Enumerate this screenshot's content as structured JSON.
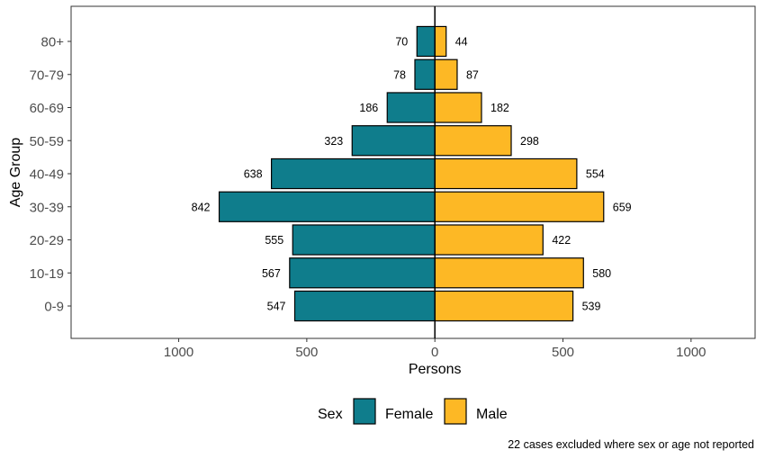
{
  "chart_data": {
    "type": "bar",
    "orientation": "horizontal-diverging",
    "categories": [
      "0-9",
      "10-19",
      "20-29",
      "30-39",
      "40-49",
      "50-59",
      "60-69",
      "70-79",
      "80+"
    ],
    "series": [
      {
        "name": "Female",
        "values": [
          547,
          567,
          555,
          842,
          638,
          323,
          186,
          78,
          70
        ],
        "color": "#0f7d8c",
        "side": "left"
      },
      {
        "name": "Male",
        "values": [
          539,
          580,
          422,
          659,
          554,
          298,
          182,
          87,
          44
        ],
        "color": "#fdb825",
        "side": "right"
      }
    ],
    "xlabel": "Persons",
    "ylabel": "Age Group",
    "xlim": [
      -1420,
      1250
    ],
    "x_ticks": [
      {
        "value": -1000,
        "label": "1000"
      },
      {
        "value": -500,
        "label": "500"
      },
      {
        "value": 0,
        "label": "0"
      },
      {
        "value": 500,
        "label": "500"
      },
      {
        "value": 1000,
        "label": "1000"
      }
    ],
    "grid": false,
    "legend": {
      "title": "Sex",
      "position": "bottom"
    },
    "caption": "22 cases excluded where sex or age not reported"
  }
}
